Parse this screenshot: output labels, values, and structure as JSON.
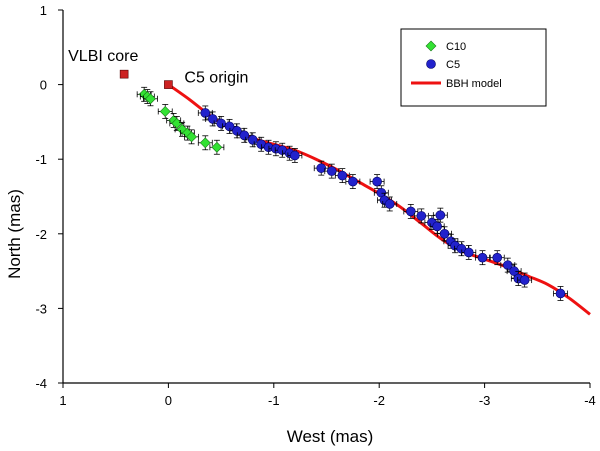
{
  "chart_data": {
    "type": "scatter",
    "title": "",
    "xlabel": "West (mas)",
    "ylabel": "North (mas)",
    "xlim": [
      1,
      -4
    ],
    "ylim": [
      -4,
      1
    ],
    "xticks": [
      1,
      0,
      -1,
      -2,
      -3,
      -4
    ],
    "xtick_labels": [
      "1",
      "0",
      "-1",
      "-2",
      "-3",
      "-4"
    ],
    "yticks": [
      1,
      0,
      -1,
      -2,
      -3,
      -4
    ],
    "ytick_labels": [
      "1",
      "0",
      "-1",
      "-2",
      "-3",
      "-4"
    ],
    "grid": false,
    "legend_position": "top-right",
    "legend": [
      {
        "label": "C10",
        "marker": "diamond",
        "color": "#33e233"
      },
      {
        "label": "C5",
        "marker": "circle",
        "color": "#2222cc"
      },
      {
        "label": "BBH model",
        "marker": "line",
        "color": "#ee1111"
      }
    ],
    "annotations": [
      {
        "text": "VLBI core",
        "x": 0.42,
        "y": 0.14
      },
      {
        "text": "C5 origin",
        "x": 0.0,
        "y": 0.0
      }
    ],
    "series": [
      {
        "name": "C10",
        "marker": "diamond",
        "points": [
          [
            0.23,
            -0.13
          ],
          [
            0.2,
            -0.16
          ],
          [
            0.17,
            -0.19
          ],
          [
            0.03,
            -0.36
          ],
          [
            -0.05,
            -0.48
          ],
          [
            -0.08,
            -0.52
          ],
          [
            -0.13,
            -0.6
          ],
          [
            -0.18,
            -0.65
          ],
          [
            -0.22,
            -0.7
          ],
          [
            -0.35,
            -0.78
          ],
          [
            -0.46,
            -0.84
          ]
        ]
      },
      {
        "name": "C5",
        "marker": "circle",
        "points": [
          [
            -0.35,
            -0.38
          ],
          [
            -0.42,
            -0.46
          ],
          [
            -0.5,
            -0.52
          ],
          [
            -0.58,
            -0.56
          ],
          [
            -0.65,
            -0.62
          ],
          [
            -0.72,
            -0.68
          ],
          [
            -0.8,
            -0.74
          ],
          [
            -0.88,
            -0.8
          ],
          [
            -0.95,
            -0.84
          ],
          [
            -1.02,
            -0.86
          ],
          [
            -1.08,
            -0.88
          ],
          [
            -1.15,
            -0.92
          ],
          [
            -1.2,
            -0.95
          ],
          [
            -1.45,
            -1.12
          ],
          [
            -1.55,
            -1.16
          ],
          [
            -1.65,
            -1.22
          ],
          [
            -1.75,
            -1.3
          ],
          [
            -1.98,
            -1.3
          ],
          [
            -2.02,
            -1.45
          ],
          [
            -2.05,
            -1.55
          ],
          [
            -2.1,
            -1.6
          ],
          [
            -2.3,
            -1.7
          ],
          [
            -2.4,
            -1.76
          ],
          [
            -2.5,
            -1.85
          ],
          [
            -2.55,
            -1.9
          ],
          [
            -2.58,
            -1.75
          ],
          [
            -2.62,
            -2.0
          ],
          [
            -2.68,
            -2.1
          ],
          [
            -2.72,
            -2.16
          ],
          [
            -2.78,
            -2.2
          ],
          [
            -2.85,
            -2.25
          ],
          [
            -2.98,
            -2.32
          ],
          [
            -3.12,
            -2.32
          ],
          [
            -3.22,
            -2.42
          ],
          [
            -3.28,
            -2.5
          ],
          [
            -3.32,
            -2.6
          ],
          [
            -3.38,
            -2.62
          ],
          [
            -3.72,
            -2.8
          ]
        ]
      },
      {
        "name": "BBH model",
        "type": "line",
        "points": [
          [
            0.0,
            0.0
          ],
          [
            -0.2,
            -0.2
          ],
          [
            -0.4,
            -0.42
          ],
          [
            -0.6,
            -0.6
          ],
          [
            -0.8,
            -0.72
          ],
          [
            -1.0,
            -0.8
          ],
          [
            -1.2,
            -0.88
          ],
          [
            -1.4,
            -1.0
          ],
          [
            -1.6,
            -1.14
          ],
          [
            -1.8,
            -1.3
          ],
          [
            -2.0,
            -1.46
          ],
          [
            -2.2,
            -1.64
          ],
          [
            -2.4,
            -1.86
          ],
          [
            -2.6,
            -2.08
          ],
          [
            -2.8,
            -2.24
          ],
          [
            -3.0,
            -2.34
          ],
          [
            -3.2,
            -2.44
          ],
          [
            -3.4,
            -2.56
          ],
          [
            -3.6,
            -2.68
          ],
          [
            -3.8,
            -2.86
          ],
          [
            -4.0,
            -3.08
          ]
        ]
      }
    ],
    "special_markers": [
      {
        "name": "VLBI core",
        "x": 0.42,
        "y": 0.14,
        "marker": "square",
        "color": "#cc2222"
      },
      {
        "name": "C5 origin",
        "x": 0.0,
        "y": 0.0,
        "marker": "square",
        "color": "#cc2222"
      }
    ]
  }
}
